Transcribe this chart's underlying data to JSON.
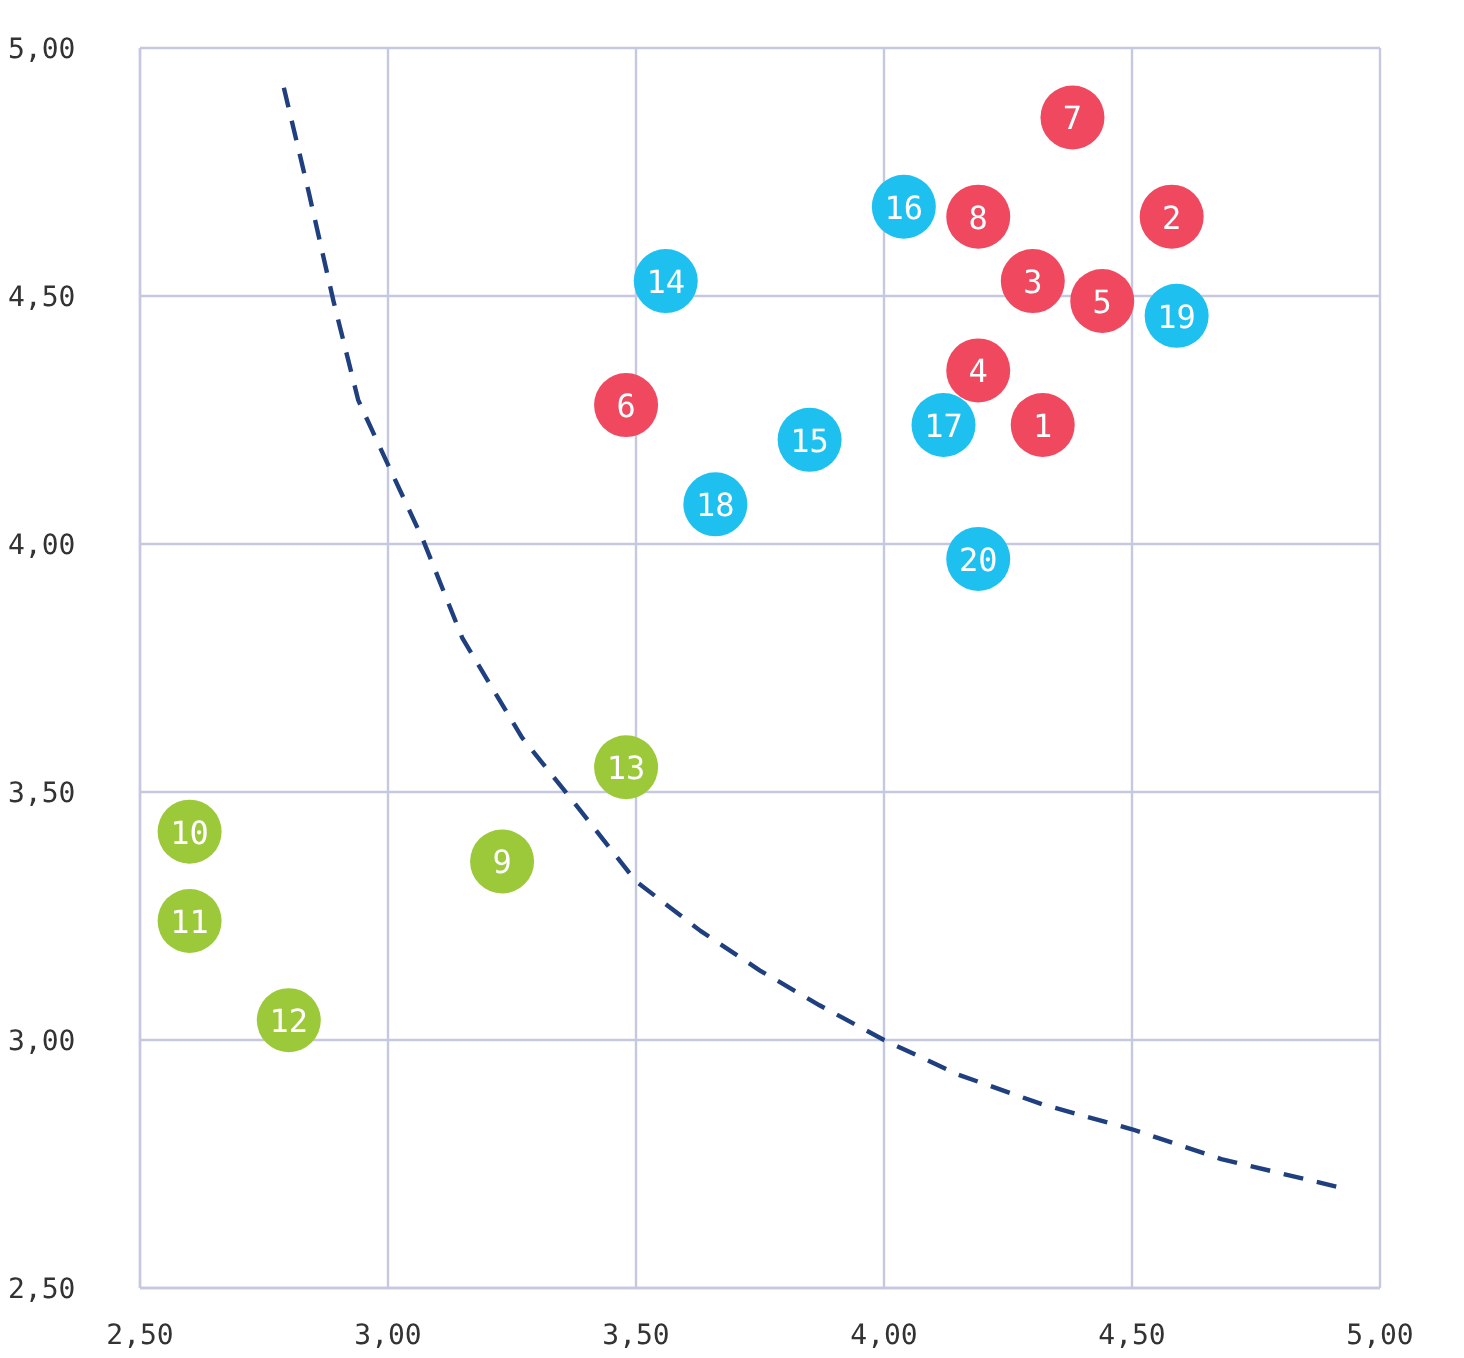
{
  "chart_data": {
    "type": "scatter",
    "xlim": [
      2.5,
      5
    ],
    "ylim": [
      2.5,
      5
    ],
    "xticks": [
      {
        "value": 2.5,
        "label": "2,50"
      },
      {
        "value": 3,
        "label": "3,00"
      },
      {
        "value": 3.5,
        "label": "3,50"
      },
      {
        "value": 4,
        "label": "4,00"
      },
      {
        "value": 4.5,
        "label": "4,50"
      },
      {
        "value": 5,
        "label": "5,00"
      }
    ],
    "yticks": [
      {
        "value": 2.5,
        "label": "2,50"
      },
      {
        "value": 3,
        "label": "3,00"
      },
      {
        "value": 3.5,
        "label": "3,50"
      },
      {
        "value": 4,
        "label": "4,00"
      },
      {
        "value": 4.5,
        "label": "4,50"
      },
      {
        "value": 5,
        "label": "5,00"
      }
    ],
    "grid": true,
    "marker": "circle",
    "series": [
      {
        "color": "#f0485f",
        "x": [
          4.32,
          4.58,
          4.3,
          4.19,
          4.44,
          3.48,
          4.38,
          4.19
        ],
        "values": [
          4.24,
          4.66,
          4.53,
          4.35,
          4.49,
          4.28,
          4.86,
          4.66
        ]
      },
      {
        "color": "#1ec0f0",
        "x": [
          3.56,
          3.85,
          4.04,
          4.12,
          3.66,
          4.59,
          4.19
        ],
        "values": [
          4.53,
          4.21,
          4.68,
          4.24,
          4.08,
          4.46,
          3.97
        ]
      },
      {
        "color": "#9bc93a",
        "x": [
          3.23,
          2.6,
          2.6,
          2.8,
          3.48
        ],
        "values": [
          3.36,
          3.42,
          3.24,
          3.04,
          3.55
        ]
      },
      {
        "type": "line",
        "color": "#1f3f7f",
        "line_style": "dashed",
        "marker": "none",
        "x": [
          2.79,
          2.84,
          2.89,
          2.94,
          3.0,
          3.07,
          3.15,
          3.27,
          3.39,
          3.5,
          3.63,
          3.75,
          3.87,
          4.0,
          4.15,
          4.32,
          4.5,
          4.68,
          4.93
        ],
        "values": [
          4.92,
          4.71,
          4.49,
          4.29,
          4.16,
          4.01,
          3.81,
          3.61,
          3.46,
          3.32,
          3.22,
          3.14,
          3.07,
          3.0,
          2.93,
          2.87,
          2.82,
          2.76,
          2.7
        ]
      }
    ],
    "annotations": [
      {
        "text": "1",
        "x": 4.32,
        "y": 4.24
      },
      {
        "text": "2",
        "x": 4.58,
        "y": 4.66
      },
      {
        "text": "3",
        "x": 4.3,
        "y": 4.53
      },
      {
        "text": "4",
        "x": 4.19,
        "y": 4.35
      },
      {
        "text": "5",
        "x": 4.44,
        "y": 4.49
      },
      {
        "text": "6",
        "x": 3.48,
        "y": 4.28
      },
      {
        "text": "7",
        "x": 4.38,
        "y": 4.86
      },
      {
        "text": "8",
        "x": 4.19,
        "y": 4.66
      },
      {
        "text": "9",
        "x": 3.23,
        "y": 3.36
      },
      {
        "text": "10",
        "x": 2.6,
        "y": 3.42
      },
      {
        "text": "11",
        "x": 2.6,
        "y": 3.24
      },
      {
        "text": "12",
        "x": 2.8,
        "y": 3.04
      },
      {
        "text": "13",
        "x": 3.48,
        "y": 3.55
      },
      {
        "text": "14",
        "x": 3.56,
        "y": 4.53
      },
      {
        "text": "15",
        "x": 3.85,
        "y": 4.21
      },
      {
        "text": "16",
        "x": 4.04,
        "y": 4.68
      },
      {
        "text": "17",
        "x": 4.12,
        "y": 4.24
      },
      {
        "text": "18",
        "x": 3.66,
        "y": 4.08
      },
      {
        "text": "19",
        "x": 4.59,
        "y": 4.46
      },
      {
        "text": "20",
        "x": 4.19,
        "y": 3.97
      }
    ]
  }
}
